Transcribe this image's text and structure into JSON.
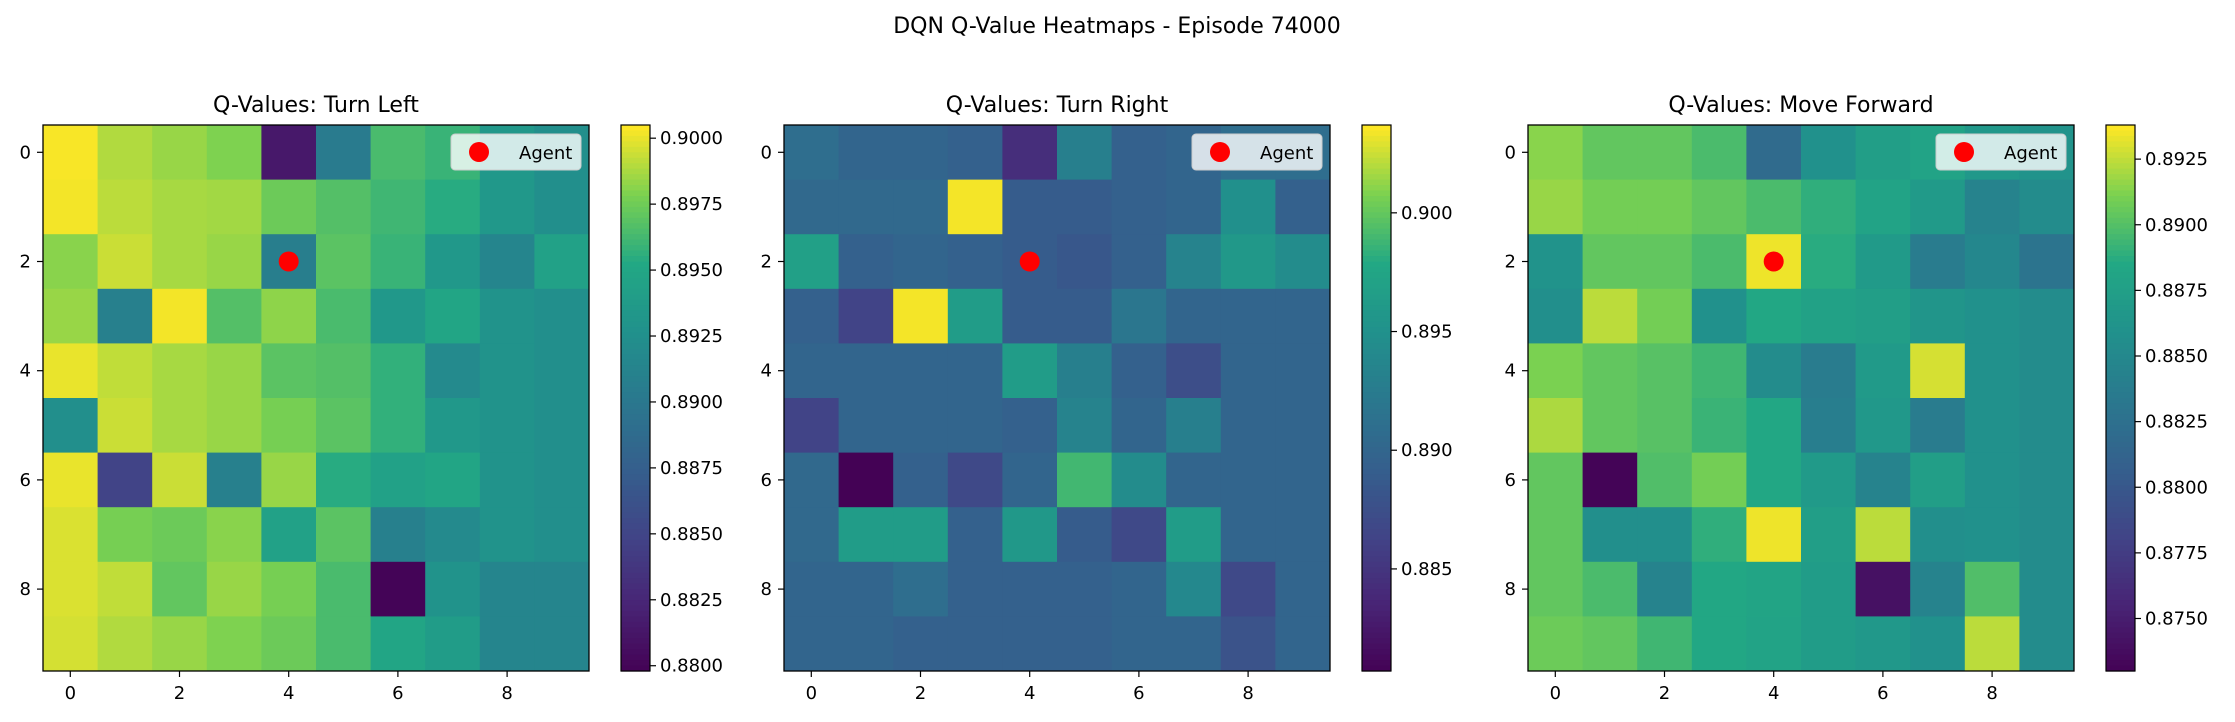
{
  "figure_title": "DQN Q-Value Heatmaps - Episode 74000",
  "legend_marker_color": "#ff0000",
  "colormap": "viridis",
  "chart_data": [
    {
      "type": "heatmap",
      "title": "Q-Values: Turn Left",
      "xticks": [
        "0",
        "2",
        "4",
        "6",
        "8"
      ],
      "yticks": [
        "0",
        "2",
        "4",
        "6",
        "8"
      ],
      "colorbar_ticks": [
        "0.8800",
        "0.8825",
        "0.8850",
        "0.8875",
        "0.8900",
        "0.8925",
        "0.8950",
        "0.8975",
        "0.9000"
      ],
      "colorbar_tick_values": [
        0.88,
        0.8825,
        0.885,
        0.8875,
        0.89,
        0.8925,
        0.895,
        0.8975,
        0.9
      ],
      "vmin": 0.8798,
      "vmax": 0.9005,
      "legend": "Agent",
      "agent": {
        "col": 4,
        "row": 2
      },
      "values": [
        [
          0.9004,
          0.899,
          0.8985,
          0.898,
          0.8815,
          0.8905,
          0.8965,
          0.896,
          0.8935,
          0.8925
        ],
        [
          0.9003,
          0.8992,
          0.8988,
          0.8987,
          0.8975,
          0.8968,
          0.8962,
          0.8955,
          0.8935,
          0.8925
        ],
        [
          0.8982,
          0.8995,
          0.8988,
          0.8985,
          0.8908,
          0.897,
          0.896,
          0.8935,
          0.8915,
          0.8945
        ],
        [
          0.8985,
          0.891,
          0.9003,
          0.8968,
          0.8983,
          0.8965,
          0.8935,
          0.895,
          0.893,
          0.8925
        ],
        [
          0.9001,
          0.8993,
          0.8988,
          0.8985,
          0.897,
          0.8968,
          0.8958,
          0.892,
          0.893,
          0.8925
        ],
        [
          0.8925,
          0.8995,
          0.8988,
          0.8985,
          0.8978,
          0.897,
          0.8958,
          0.8935,
          0.893,
          0.8925
        ],
        [
          0.9001,
          0.885,
          0.8995,
          0.891,
          0.8985,
          0.8955,
          0.8945,
          0.895,
          0.893,
          0.8925
        ],
        [
          0.8998,
          0.8978,
          0.8975,
          0.8982,
          0.8945,
          0.897,
          0.891,
          0.892,
          0.893,
          0.8925
        ],
        [
          0.8998,
          0.8993,
          0.8972,
          0.8985,
          0.8978,
          0.8965,
          0.88,
          0.893,
          0.8915,
          0.8915
        ],
        [
          0.8997,
          0.899,
          0.8985,
          0.898,
          0.8975,
          0.8965,
          0.895,
          0.894,
          0.8915,
          0.8915
        ]
      ]
    },
    {
      "type": "heatmap",
      "title": "Q-Values: Turn Right",
      "xticks": [
        "0",
        "2",
        "4",
        "6",
        "8"
      ],
      "yticks": [
        "0",
        "2",
        "4",
        "6",
        "8"
      ],
      "colorbar_ticks": [
        "0.885",
        "0.890",
        "0.895",
        "0.900"
      ],
      "colorbar_tick_values": [
        0.885,
        0.89,
        0.895,
        0.9
      ],
      "vmin": 0.8807,
      "vmax": 0.9037,
      "legend": "Agent",
      "agent": {
        "col": 4,
        "row": 2
      },
      "values": [
        [
          0.891,
          0.89,
          0.89,
          0.8895,
          0.8845,
          0.893,
          0.8895,
          0.89,
          0.891,
          0.891
        ],
        [
          0.8905,
          0.8905,
          0.8905,
          0.9035,
          0.889,
          0.889,
          0.8895,
          0.89,
          0.895,
          0.8895
        ],
        [
          0.897,
          0.8895,
          0.89,
          0.8895,
          0.889,
          0.8885,
          0.8895,
          0.8935,
          0.896,
          0.8945
        ],
        [
          0.8895,
          0.8865,
          0.9035,
          0.8965,
          0.889,
          0.889,
          0.892,
          0.89,
          0.89,
          0.89
        ],
        [
          0.89,
          0.89,
          0.89,
          0.89,
          0.8965,
          0.893,
          0.8895,
          0.8875,
          0.89,
          0.89
        ],
        [
          0.8865,
          0.89,
          0.89,
          0.89,
          0.8895,
          0.8935,
          0.89,
          0.893,
          0.89,
          0.89
        ],
        [
          0.8905,
          0.8808,
          0.8895,
          0.887,
          0.89,
          0.899,
          0.8945,
          0.89,
          0.89,
          0.89
        ],
        [
          0.8905,
          0.8965,
          0.8965,
          0.8895,
          0.896,
          0.889,
          0.887,
          0.8965,
          0.89,
          0.89
        ],
        [
          0.89,
          0.89,
          0.891,
          0.8895,
          0.8895,
          0.8895,
          0.89,
          0.894,
          0.887,
          0.89
        ],
        [
          0.89,
          0.89,
          0.8895,
          0.8895,
          0.8895,
          0.8895,
          0.89,
          0.89,
          0.888,
          0.89
        ]
      ]
    },
    {
      "type": "heatmap",
      "title": "Q-Values: Move Forward",
      "xticks": [
        "0",
        "2",
        "4",
        "6",
        "8"
      ],
      "yticks": [
        "0",
        "2",
        "4",
        "6",
        "8"
      ],
      "colorbar_ticks": [
        "0.8750",
        "0.8775",
        "0.8800",
        "0.8825",
        "0.8850",
        "0.8875",
        "0.8900",
        "0.8925"
      ],
      "colorbar_tick_values": [
        0.875,
        0.8775,
        0.88,
        0.8825,
        0.885,
        0.8875,
        0.89,
        0.8925
      ],
      "vmin": 0.873,
      "vmax": 0.8938,
      "legend": "Agent",
      "agent": {
        "col": 4,
        "row": 2
      },
      "values": [
        [
          0.8915,
          0.8905,
          0.8905,
          0.8898,
          0.882,
          0.886,
          0.8875,
          0.888,
          0.8868,
          0.8862
        ],
        [
          0.8918,
          0.891,
          0.891,
          0.8905,
          0.8898,
          0.889,
          0.888,
          0.887,
          0.8845,
          0.8855
        ],
        [
          0.8862,
          0.8905,
          0.8905,
          0.8898,
          0.8935,
          0.8888,
          0.887,
          0.8838,
          0.885,
          0.883
        ],
        [
          0.8858,
          0.8925,
          0.891,
          0.886,
          0.8885,
          0.8878,
          0.8875,
          0.8865,
          0.886,
          0.8855
        ],
        [
          0.8912,
          0.8905,
          0.8902,
          0.8895,
          0.8855,
          0.8838,
          0.887,
          0.893,
          0.886,
          0.8855
        ],
        [
          0.8922,
          0.8905,
          0.8902,
          0.8893,
          0.8885,
          0.884,
          0.8868,
          0.8838,
          0.886,
          0.8855
        ],
        [
          0.8905,
          0.8732,
          0.89,
          0.891,
          0.8885,
          0.887,
          0.8845,
          0.8875,
          0.886,
          0.8855
        ],
        [
          0.8905,
          0.8858,
          0.8858,
          0.889,
          0.8935,
          0.8875,
          0.8925,
          0.8858,
          0.886,
          0.8855
        ],
        [
          0.8905,
          0.8898,
          0.8845,
          0.8885,
          0.8882,
          0.8873,
          0.8742,
          0.8845,
          0.89,
          0.8855
        ],
        [
          0.8908,
          0.8905,
          0.8895,
          0.8885,
          0.888,
          0.8873,
          0.8868,
          0.886,
          0.8925,
          0.8855
        ]
      ]
    }
  ]
}
